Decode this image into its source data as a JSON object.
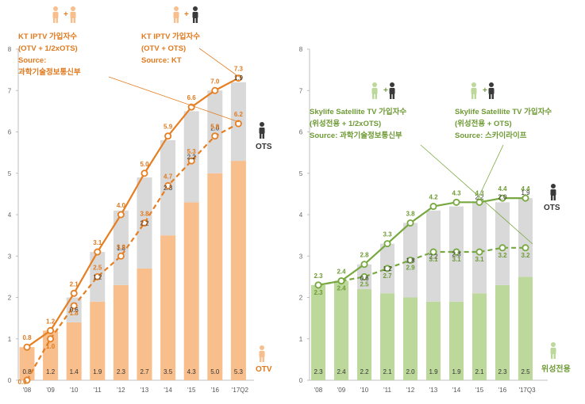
{
  "colors": {
    "otv": "#f8be8c",
    "ots": "#d9d9d9",
    "kt_line": "#e67e22",
    "kt_text": "#e07a1f",
    "sat_bar": "#bcd89b",
    "sat_line": "#78a840",
    "sat_text": "#6e9a35",
    "axis": "#bfbfbf",
    "figure_dark": "#3a3a3a"
  },
  "icons": [
    "person-orange-icon",
    "person-dark-icon",
    "person-green-icon"
  ],
  "chart_data": [
    {
      "type": "bar",
      "stacked": true,
      "categories": [
        "'08",
        "'09",
        "'10",
        "'11",
        "'12",
        "'13",
        "'14",
        "'15",
        "'16",
        "'17Q2"
      ],
      "ylim": [
        0,
        8
      ],
      "yticks": [
        "0",
        "1",
        "2",
        "3",
        "4",
        "5",
        "6",
        "7",
        "8"
      ],
      "series": [
        {
          "name": "OTV",
          "values": [
            0.8,
            1.2,
            1.4,
            1.9,
            2.3,
            2.7,
            3.5,
            4.3,
            5.0,
            5.3
          ],
          "labels": [
            "0.8",
            "1.2",
            "1.4",
            "1.9",
            "2.3",
            "2.7",
            "3.5",
            "4.3",
            "5.0",
            "5.3"
          ]
        },
        {
          "name": "OTS",
          "values": [
            0.0,
            0.0,
            0.6,
            1.2,
            1.8,
            2.2,
            2.3,
            2.2,
            2.0,
            1.9
          ],
          "labels": [
            "",
            "",
            "0.6",
            "1.2",
            "1.8",
            "2.2",
            "2.3",
            "2.2",
            "2.0",
            "1.9"
          ]
        }
      ],
      "lines": [
        {
          "values": [
            0.8,
            1.2,
            2.1,
            3.1,
            4.0,
            5.0,
            5.9,
            6.6,
            7.0,
            7.3
          ],
          "labels": [
            "0.8",
            "1.2",
            "2.1",
            "3.1",
            "4.0",
            "5.0",
            "5.9",
            "6.6",
            "7.0",
            "7.3"
          ],
          "dashed": false
        },
        {
          "values": [
            0.0,
            1.0,
            1.8,
            2.5,
            3.0,
            3.8,
            4.7,
            5.3,
            5.9,
            6.2
          ],
          "labels": [
            "0.0",
            "1.0",
            "1.8",
            "2.5",
            "3.0",
            "3.8",
            "4.7",
            "5.3",
            "5.9",
            "6.2"
          ],
          "dashed": true
        }
      ],
      "legend_ots": "OTS",
      "legend_otv": "OTV",
      "annotations": [
        {
          "lines": [
            "KT IPTV 가입자수",
            "(OTV + 1/2xOTS)",
            "Source:",
            "과학기술정보통신부"
          ]
        },
        {
          "lines": [
            "KT IPTV 가입자수",
            "(OTV + OTS)",
            "Source: KT"
          ]
        }
      ],
      "plus": "+"
    },
    {
      "type": "bar",
      "stacked": true,
      "categories": [
        "'08",
        "'09",
        "'10",
        "'11",
        "'12",
        "'13",
        "'14",
        "'15",
        "'16",
        "'17Q3"
      ],
      "ylim": [
        0,
        8
      ],
      "yticks": [
        "0",
        "1",
        "2",
        "3",
        "4",
        "5",
        "6",
        "7",
        "8"
      ],
      "series": [
        {
          "name": "위성전용",
          "values": [
            2.3,
            2.4,
            2.2,
            2.1,
            2.0,
            1.9,
            1.9,
            2.1,
            2.3,
            2.5
          ],
          "labels": [
            "2.3",
            "2.4",
            "2.2",
            "2.1",
            "2.0",
            "1.9",
            "1.9",
            "2.1",
            "2.3",
            "2.5"
          ]
        },
        {
          "name": "OTS",
          "values": [
            0.0,
            0.0,
            0.6,
            1.2,
            1.8,
            2.2,
            2.3,
            2.2,
            2.0,
            1.9
          ],
          "labels": [
            "",
            "",
            "0.6",
            "1.2",
            "1.8",
            "2.2",
            "2.3",
            "2.2",
            "2.0",
            "1.9"
          ]
        }
      ],
      "lines": [
        {
          "values": [
            2.3,
            2.4,
            2.8,
            3.3,
            3.8,
            4.2,
            4.3,
            4.3,
            4.4,
            4.4
          ],
          "labels": [
            "2.3",
            "2.4",
            "2.8",
            "3.3",
            "3.8",
            "4.2",
            "4.3",
            "4.3",
            "4.4",
            "4.4"
          ],
          "dashed": false
        },
        {
          "values": [
            2.3,
            2.4,
            2.5,
            2.7,
            2.9,
            3.1,
            3.1,
            3.1,
            3.2,
            3.2
          ],
          "labels": [
            "2.3",
            "2.4",
            "2.5",
            "2.7",
            "2.9",
            "3.1",
            "3.1",
            "3.1",
            "3.2",
            "3.2"
          ],
          "dashed": true
        }
      ],
      "legend_ots": "OTS",
      "legend_otv": "위성전용",
      "annotations": [
        {
          "lines": [
            "Skylife Satellite TV 가입자수",
            "(위성전용 + 1/2xOTS)",
            "Source: 과학기술정보통신부"
          ]
        },
        {
          "lines": [
            "Skylife Satellite TV 가입자수",
            "(위성전용 + OTS)",
            "Source: 스카이라이프"
          ]
        }
      ],
      "plus": "+"
    }
  ]
}
